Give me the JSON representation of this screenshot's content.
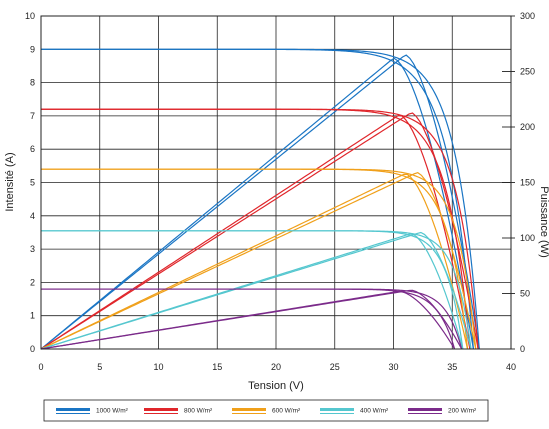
{
  "chart_data": {
    "type": "line",
    "xlabel": "Tension (V)",
    "ylabel": "Intensité (A)",
    "y2label": "Puissance (W)",
    "xlim": [
      0,
      40
    ],
    "ylim": [
      0,
      10
    ],
    "y2lim": [
      0,
      300
    ],
    "xticks": [
      0,
      5,
      10,
      15,
      20,
      25,
      30,
      35,
      40
    ],
    "yticks": [
      0,
      1,
      2,
      3,
      4,
      5,
      6,
      7,
      8,
      9,
      10
    ],
    "y2ticks": [
      0,
      50,
      100,
      150,
      200,
      250,
      300
    ],
    "grid": true,
    "legend_position": "bottom",
    "series": [
      {
        "name": "1000 W/m²",
        "color": "#1a75c4",
        "isc": 9.0,
        "voc_a": 36.8,
        "voc_b": 37.3,
        "vmp_a": 30.0,
        "vmp_b": 31.0,
        "pmax_a": 262,
        "pmax_b": 265
      },
      {
        "name": "800 W/m²",
        "color": "#e0262b",
        "isc": 7.2,
        "voc_a": 36.5,
        "voc_b": 37.2,
        "vmp_a": 30.5,
        "vmp_b": 31.5,
        "pmax_a": 211,
        "pmax_b": 213
      },
      {
        "name": "600 W/m²",
        "color": "#f0a01a",
        "isc": 5.4,
        "voc_a": 36.3,
        "voc_b": 37.0,
        "vmp_a": 31.0,
        "vmp_b": 32.0,
        "pmax_a": 158,
        "pmax_b": 159
      },
      {
        "name": "400 W/m²",
        "color": "#55c7cf",
        "isc": 3.55,
        "voc_a": 35.9,
        "voc_b": 36.6,
        "vmp_a": 31.5,
        "vmp_b": 32.3,
        "pmax_a": 104,
        "pmax_b": 105
      },
      {
        "name": "200 W/m²",
        "color": "#7b2b8a",
        "isc": 1.8,
        "voc_a": 35.2,
        "voc_b": 35.8,
        "vmp_a": 30.5,
        "vmp_b": 31.5,
        "pmax_a": 52,
        "pmax_b": 53
      }
    ]
  }
}
